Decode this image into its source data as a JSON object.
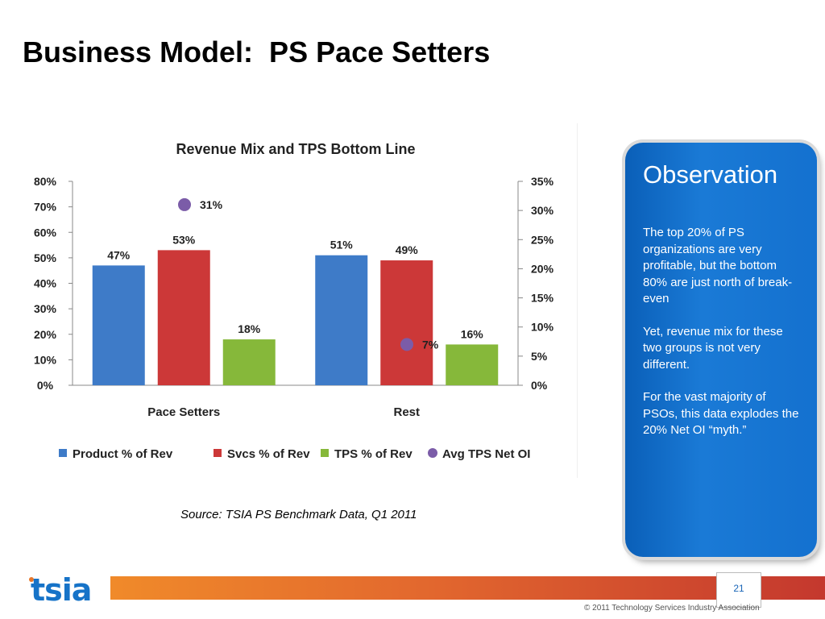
{
  "slide": {
    "title": "Business Model:  PS Pace Setters",
    "source": "Source:  TSIA PS Benchmark Data, Q1 2011",
    "page_number": "21",
    "copyright": "© 2011 Technology Services Industry Association",
    "logo_text": "tsia"
  },
  "observation": {
    "title": "Observation",
    "paragraphs": [
      "The top 20% of PS organizations are very profitable, but the bottom 80% are just north of break-even",
      "Yet, revenue mix for these two groups is not very different.",
      "For the vast majority of PSOs, this data explodes the 20% Net OI “myth.”"
    ]
  },
  "colors": {
    "product": "#3e7bc8",
    "svcs": "#cc3838",
    "tps": "#86b83a",
    "avg_oi": "#7b5ca8",
    "observation_panel": "#1471cf",
    "footer_orange": "#e2672e"
  },
  "chart_data": {
    "type": "bar",
    "title": "Revenue Mix and TPS Bottom Line",
    "categories": [
      "Pace Setters",
      "Rest"
    ],
    "series": [
      {
        "name": "Product % of Rev",
        "values": [
          47,
          51
        ],
        "labels": [
          "47%",
          "51%"
        ],
        "axis": "left",
        "kind": "bar"
      },
      {
        "name": "Svcs % of Rev",
        "values": [
          53,
          49
        ],
        "labels": [
          "53%",
          "49%"
        ],
        "axis": "left",
        "kind": "bar"
      },
      {
        "name": "TPS % of Rev",
        "values": [
          18,
          16
        ],
        "labels": [
          "18%",
          "16%"
        ],
        "axis": "left",
        "kind": "bar"
      },
      {
        "name": "Avg TPS Net OI",
        "values": [
          31,
          7
        ],
        "labels": [
          "31%",
          "7%"
        ],
        "axis": "right",
        "kind": "marker"
      }
    ],
    "y_left": {
      "ylim": [
        0,
        80
      ],
      "ticks": [
        "0%",
        "10%",
        "20%",
        "30%",
        "40%",
        "50%",
        "60%",
        "70%",
        "80%"
      ]
    },
    "y_right": {
      "ylim": [
        0,
        35
      ],
      "ticks": [
        "0%",
        "5%",
        "10%",
        "15%",
        "20%",
        "25%",
        "30%",
        "35%"
      ]
    },
    "grid": false,
    "legend_position": "bottom"
  }
}
